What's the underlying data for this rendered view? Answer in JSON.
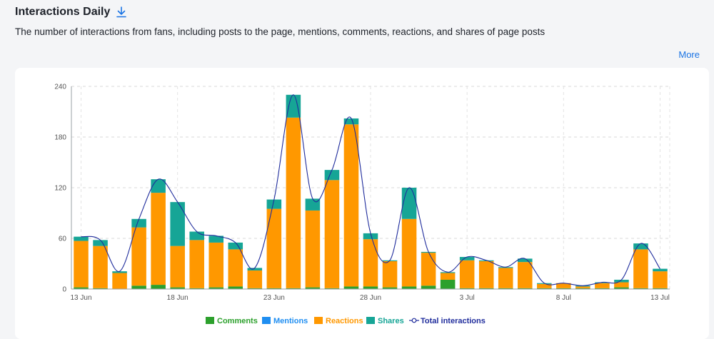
{
  "header": {
    "title": "Interactions Daily",
    "subtitle": "The number of interactions from fans, including posts to the page, mentions, comments, reactions, and shares of page posts",
    "more_label": "More",
    "download_icon": "download-icon"
  },
  "colors": {
    "comments": "#2ca02c",
    "mentions": "#1f8ef1",
    "reactions": "#ff9800",
    "shares": "#16a596",
    "total": "#1f2c9c",
    "link": "#1b74e4"
  },
  "chart_data": {
    "type": "bar",
    "stacked": true,
    "ylim": [
      0,
      240
    ],
    "yticks": [
      0,
      60,
      120,
      180,
      240
    ],
    "xtick_labels": [
      {
        "index": 0,
        "label": "13 Jun"
      },
      {
        "index": 5,
        "label": "18 Jun"
      },
      {
        "index": 10,
        "label": "23 Jun"
      },
      {
        "index": 15,
        "label": "28 Jun"
      },
      {
        "index": 20,
        "label": "3 Jul"
      },
      {
        "index": 25,
        "label": "8 Jul"
      },
      {
        "index": 30,
        "label": "13 Jul"
      }
    ],
    "categories": [
      "13 Jun",
      "14 Jun",
      "15 Jun",
      "16 Jun",
      "17 Jun",
      "18 Jun",
      "19 Jun",
      "20 Jun",
      "21 Jun",
      "22 Jun",
      "23 Jun",
      "24 Jun",
      "25 Jun",
      "26 Jun",
      "27 Jun",
      "28 Jun",
      "29 Jun",
      "30 Jun",
      "1 Jul",
      "2 Jul",
      "3 Jul",
      "4 Jul",
      "5 Jul",
      "6 Jul",
      "7 Jul",
      "8 Jul",
      "9 Jul",
      "10 Jul",
      "11 Jul",
      "12 Jul",
      "13 Jul"
    ],
    "series": [
      {
        "name": "Comments",
        "key": "comments",
        "values": [
          2,
          1,
          0,
          4,
          5,
          2,
          1,
          2,
          3,
          1,
          1,
          1,
          2,
          1,
          3,
          3,
          2,
          3,
          4,
          11,
          1,
          1,
          1,
          1,
          1,
          1,
          1,
          1,
          2,
          1,
          1
        ]
      },
      {
        "name": "Mentions",
        "key": "mentions",
        "values": [
          0,
          0,
          0,
          0,
          0,
          0,
          0,
          0,
          0,
          0,
          0,
          0,
          0,
          0,
          0,
          0,
          0,
          0,
          0,
          0,
          0,
          0,
          0,
          0,
          0,
          0,
          0,
          0,
          0,
          0,
          0
        ]
      },
      {
        "name": "Reactions",
        "key": "reactions",
        "values": [
          55,
          50,
          19,
          69,
          109,
          49,
          57,
          53,
          44,
          21,
          94,
          202,
          91,
          128,
          192,
          56,
          31,
          80,
          39,
          8,
          33,
          32,
          24,
          31,
          5,
          6,
          2,
          6,
          6,
          46,
          20
        ]
      },
      {
        "name": "Shares",
        "key": "shares",
        "values": [
          5,
          7,
          2,
          10,
          16,
          52,
          10,
          8,
          8,
          3,
          11,
          27,
          14,
          12,
          7,
          7,
          1,
          37,
          1,
          1,
          4,
          1,
          1,
          4,
          1,
          0,
          1,
          1,
          3,
          7,
          3
        ]
      }
    ],
    "total": {
      "name": "Total interactions",
      "values": [
        62,
        58,
        21,
        83,
        130,
        103,
        68,
        63,
        55,
        25,
        106,
        230,
        107,
        141,
        202,
        66,
        34,
        120,
        44,
        20,
        38,
        34,
        26,
        36,
        7,
        7,
        4,
        8,
        11,
        54,
        24
      ]
    },
    "legend": [
      "Comments",
      "Mentions",
      "Reactions",
      "Shares",
      "Total interactions"
    ],
    "legend_position": "bottom",
    "grid": true
  }
}
